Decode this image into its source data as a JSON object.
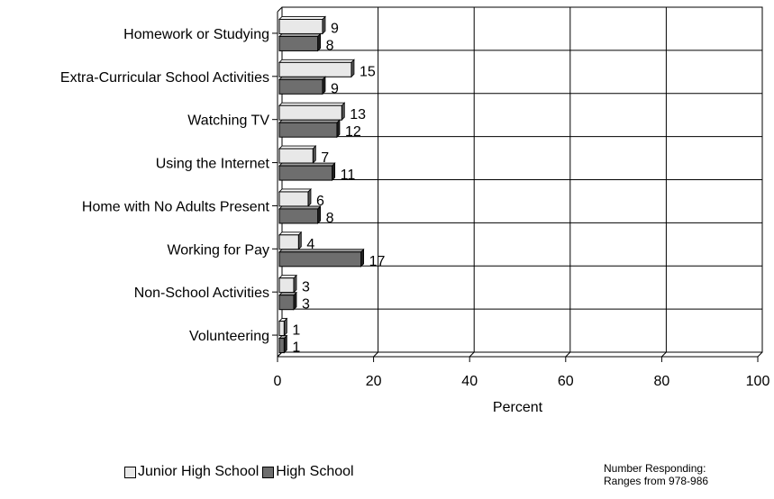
{
  "chart_data": {
    "type": "bar",
    "orientation": "horizontal",
    "style": "3d",
    "categories": [
      "Homework or Studying",
      "Extra-Curricular School Activities",
      "Watching TV",
      "Using the Internet",
      "Home with No Adults Present",
      "Working for Pay",
      "Non-School Activities",
      "Volunteering"
    ],
    "series": [
      {
        "name": "Junior High School",
        "color": "#e8e8e8",
        "values": [
          9,
          15,
          13,
          7,
          6,
          4,
          3,
          1
        ]
      },
      {
        "name": "High School",
        "color": "#6e6e6e",
        "values": [
          8,
          9,
          12,
          11,
          8,
          17,
          3,
          1
        ]
      }
    ],
    "xlabel": "Percent",
    "ylabel": "",
    "xlim": [
      0,
      100
    ],
    "xticks": [
      0,
      20,
      40,
      60,
      80,
      100
    ],
    "grid": true,
    "legend_position": "bottom"
  },
  "note": {
    "line1": "Number Responding:",
    "line2": "Ranges from 978-986"
  }
}
